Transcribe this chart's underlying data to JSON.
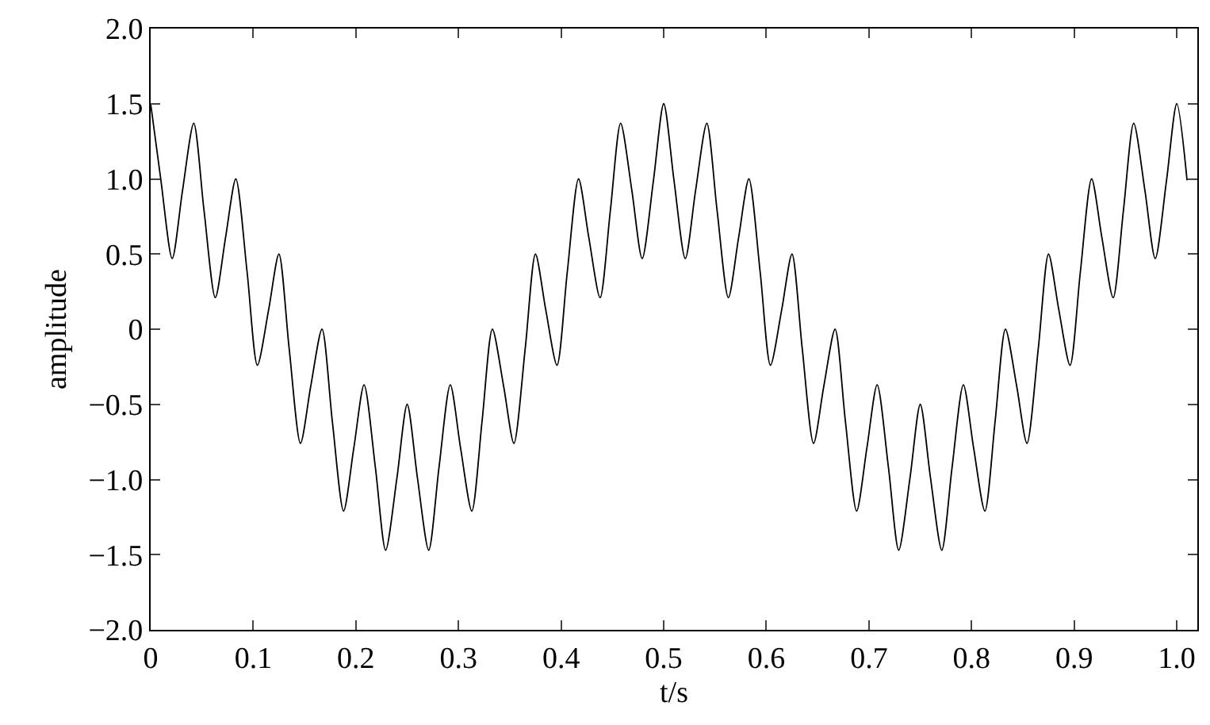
{
  "chart_data": {
    "type": "line",
    "xlabel": "t/s",
    "ylabel": "amplitude",
    "series": [
      {
        "color": "#000000",
        "x": [
          0,
          0.01,
          0.021,
          0.031,
          0.042,
          0.052,
          0.063,
          0.073,
          0.083,
          0.094,
          0.104,
          0.115,
          0.125,
          0.135,
          0.146,
          0.156,
          0.167,
          0.177,
          0.188,
          0.198,
          0.208,
          0.219,
          0.229,
          0.24,
          0.25,
          0.26,
          0.271,
          0.281,
          0.292,
          0.302,
          0.313,
          0.323,
          0.333,
          0.344,
          0.354,
          0.365,
          0.375,
          0.385,
          0.396,
          0.406,
          0.417,
          0.427,
          0.438,
          0.448,
          0.458,
          0.469,
          0.479,
          0.49,
          0.5,
          0.51,
          0.521,
          0.531,
          0.542,
          0.552,
          0.563,
          0.573,
          0.583,
          0.594,
          0.604,
          0.615,
          0.625,
          0.635,
          0.646,
          0.656,
          0.667,
          0.677,
          0.688,
          0.698,
          0.708,
          0.719,
          0.729,
          0.74,
          0.75,
          0.76,
          0.771,
          0.781,
          0.792,
          0.802,
          0.813,
          0.823,
          0.833,
          0.844,
          0.854,
          0.865,
          0.875,
          0.885,
          0.896,
          0.906,
          0.917,
          0.927,
          0.938,
          0.948,
          0.958,
          0.969,
          0.979,
          0.99,
          1.0,
          1.01
        ],
        "values": [
          1.5,
          0.99,
          0.47,
          0.92,
          1.37,
          0.79,
          0.21,
          0.61,
          1.0,
          0.38,
          -0.24,
          0.13,
          0.5,
          -0.13,
          -0.76,
          -0.38,
          0.0,
          -0.61,
          -1.21,
          -0.79,
          -0.37,
          -0.92,
          -1.47,
          -0.99,
          -0.5,
          -0.99,
          -1.47,
          -0.92,
          -0.37,
          -0.79,
          -1.21,
          -0.61,
          0.0,
          -0.38,
          -0.76,
          -0.13,
          0.5,
          0.13,
          -0.24,
          0.38,
          1.0,
          0.61,
          0.21,
          0.79,
          1.37,
          0.92,
          0.47,
          0.99,
          1.5,
          0.99,
          0.47,
          0.92,
          1.37,
          0.79,
          0.21,
          0.61,
          1.0,
          0.38,
          -0.24,
          0.13,
          0.5,
          -0.13,
          -0.76,
          -0.38,
          0.0,
          -0.61,
          -1.21,
          -0.79,
          -0.37,
          -0.92,
          -1.47,
          -0.99,
          -0.5,
          -0.99,
          -1.47,
          -0.92,
          -0.37,
          -0.79,
          -1.21,
          -0.61,
          0.0,
          -0.38,
          -0.76,
          -0.13,
          0.5,
          0.13,
          -0.24,
          0.38,
          1.0,
          0.61,
          0.21,
          0.79,
          1.37,
          0.92,
          0.47,
          0.99,
          1.5,
          0.99
        ]
      }
    ],
    "xlim": [
      0,
      1.02
    ],
    "xticks": [
      0,
      0.1,
      0.2,
      0.3,
      0.4,
      0.5,
      0.6,
      0.7,
      0.8,
      0.9,
      {
        "value": 1,
        "label": "1.0"
      }
    ],
    "ylim": [
      -2,
      2
    ],
    "yticks": [
      {
        "value": -2,
        "label": "−2.0"
      },
      {
        "value": -1.5,
        "label": "−1.5"
      },
      {
        "value": -1,
        "label": "−1.0"
      },
      {
        "value": -0.5,
        "label": "−0.5"
      },
      0,
      0.5,
      {
        "value": 1,
        "label": "1.0"
      },
      1.5,
      {
        "value": 2,
        "label": "2.0"
      }
    ],
    "line_style": "solid"
  }
}
